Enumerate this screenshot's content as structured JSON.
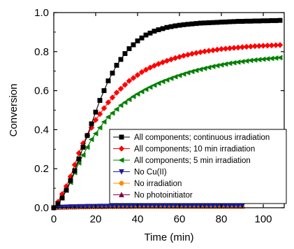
{
  "chart_data": {
    "type": "line",
    "xlabel": "Time (min)",
    "ylabel": "Conversion",
    "xlim": [
      0,
      110
    ],
    "ylim": [
      0,
      1.0
    ],
    "xticks": [
      0,
      20,
      40,
      60,
      80,
      100
    ],
    "yticks": [
      0.0,
      0.2,
      0.4,
      0.6,
      0.8,
      1.0
    ],
    "xtick_labels": [
      "0",
      "20",
      "40",
      "60",
      "80",
      "100"
    ],
    "ytick_labels": [
      "0.0",
      "0.2",
      "0.4",
      "0.6",
      "0.8",
      "1.0"
    ],
    "grid": false,
    "legend_position": "right",
    "series": [
      {
        "name": "All components; continuous irradiation",
        "color": "#000000",
        "marker": "square",
        "x": [
          0,
          2,
          4,
          6,
          8,
          10,
          12,
          14,
          16,
          18,
          20,
          22,
          24,
          26,
          28,
          30,
          32,
          34,
          36,
          38,
          40,
          42,
          44,
          46,
          48,
          50,
          52,
          54,
          56,
          58,
          60,
          62,
          64,
          66,
          68,
          70,
          72,
          74,
          76,
          78,
          80,
          82,
          84,
          86,
          88,
          90,
          92,
          94,
          96,
          98,
          100,
          102,
          104,
          106,
          108
        ],
        "y": [
          0,
          0.02,
          0.05,
          0.09,
          0.14,
          0.19,
          0.25,
          0.31,
          0.37,
          0.43,
          0.49,
          0.55,
          0.6,
          0.65,
          0.69,
          0.73,
          0.76,
          0.79,
          0.815,
          0.835,
          0.855,
          0.87,
          0.885,
          0.895,
          0.905,
          0.912,
          0.918,
          0.924,
          0.928,
          0.932,
          0.935,
          0.938,
          0.94,
          0.942,
          0.944,
          0.946,
          0.947,
          0.948,
          0.949,
          0.95,
          0.951,
          0.952,
          0.953,
          0.954,
          0.955,
          0.955,
          0.956,
          0.956,
          0.957,
          0.957,
          0.958,
          0.958,
          0.959,
          0.959,
          0.96
        ]
      },
      {
        "name": "All components; 10 min irradiation",
        "color": "#ff0000",
        "marker": "diamond",
        "x": [
          0,
          2,
          4,
          6,
          8,
          10,
          12,
          14,
          16,
          18,
          20,
          22,
          24,
          26,
          28,
          30,
          32,
          34,
          36,
          38,
          40,
          42,
          44,
          46,
          48,
          50,
          52,
          54,
          56,
          58,
          60,
          62,
          64,
          66,
          68,
          70,
          72,
          74,
          76,
          78,
          80,
          82,
          84,
          86,
          88,
          90,
          92,
          94,
          96,
          98,
          100,
          102,
          104,
          106,
          108
        ],
        "y": [
          0,
          0.03,
          0.07,
          0.11,
          0.16,
          0.22,
          0.28,
          0.33,
          0.37,
          0.41,
          0.45,
          0.48,
          0.51,
          0.54,
          0.565,
          0.59,
          0.61,
          0.63,
          0.65,
          0.665,
          0.68,
          0.695,
          0.707,
          0.718,
          0.728,
          0.737,
          0.745,
          0.753,
          0.76,
          0.767,
          0.773,
          0.779,
          0.784,
          0.789,
          0.793,
          0.797,
          0.801,
          0.804,
          0.807,
          0.81,
          0.813,
          0.815,
          0.817,
          0.819,
          0.821,
          0.823,
          0.825,
          0.826,
          0.828,
          0.829,
          0.83,
          0.831,
          0.832,
          0.833,
          0.834
        ]
      },
      {
        "name": "All components; 5 min irradiation",
        "color": "#008000",
        "marker": "triangle-left",
        "x": [
          0,
          2,
          4,
          6,
          8,
          10,
          12,
          14,
          16,
          18,
          20,
          22,
          24,
          26,
          28,
          30,
          32,
          34,
          36,
          38,
          40,
          42,
          44,
          46,
          48,
          50,
          52,
          54,
          56,
          58,
          60,
          62,
          64,
          66,
          68,
          70,
          72,
          74,
          76,
          78,
          80,
          82,
          84,
          86,
          88,
          90,
          92,
          94,
          96,
          98,
          100,
          102,
          104,
          106,
          108
        ],
        "y": [
          0,
          0.02,
          0.05,
          0.09,
          0.13,
          0.18,
          0.23,
          0.27,
          0.31,
          0.35,
          0.38,
          0.41,
          0.44,
          0.465,
          0.485,
          0.505,
          0.525,
          0.54,
          0.555,
          0.57,
          0.583,
          0.595,
          0.607,
          0.618,
          0.628,
          0.638,
          0.647,
          0.655,
          0.663,
          0.671,
          0.678,
          0.685,
          0.692,
          0.698,
          0.704,
          0.709,
          0.714,
          0.719,
          0.724,
          0.728,
          0.732,
          0.736,
          0.74,
          0.743,
          0.746,
          0.749,
          0.752,
          0.755,
          0.757,
          0.759,
          0.761,
          0.763,
          0.765,
          0.767,
          0.769
        ]
      },
      {
        "name": "No Cu(II)",
        "color": "#1a1aa0",
        "marker": "triangle-down",
        "x": [
          0,
          2,
          4,
          6,
          8,
          10,
          12,
          14,
          16,
          18,
          20,
          22,
          24,
          26,
          28,
          30,
          32,
          34,
          36,
          38,
          40,
          42,
          44,
          46,
          48,
          50,
          52,
          54,
          56,
          58,
          60,
          62,
          64,
          66,
          68,
          70,
          72,
          74,
          76,
          78,
          80,
          82,
          84,
          86,
          88,
          90
        ],
        "y": [
          0,
          0.002,
          0.003,
          0.004,
          0.005,
          0.005,
          0.006,
          0.006,
          0.007,
          0.007,
          0.007,
          0.008,
          0.008,
          0.008,
          0.008,
          0.009,
          0.009,
          0.009,
          0.009,
          0.009,
          0.01,
          0.01,
          0.01,
          0.01,
          0.01,
          0.01,
          0.01,
          0.01,
          0.01,
          0.01,
          0.01,
          0.01,
          0.01,
          0.01,
          0.01,
          0.01,
          0.01,
          0.01,
          0.01,
          0.01,
          0.01,
          0.01,
          0.01,
          0.01,
          0.01,
          0.01
        ]
      },
      {
        "name": "No irradiation",
        "color": "#ff8c00",
        "marker": "circle",
        "x": [
          0,
          2,
          4,
          6,
          8,
          10,
          12,
          14,
          16,
          18,
          20,
          22,
          24,
          26,
          28,
          30,
          32,
          34,
          36,
          38,
          40,
          42,
          44,
          46,
          48,
          50,
          52,
          54,
          56,
          58,
          60,
          62,
          64,
          66,
          68,
          70,
          72,
          74,
          76,
          78,
          80,
          82,
          84,
          86,
          88,
          90
        ],
        "y": [
          0,
          0.001,
          0.002,
          0.002,
          0.003,
          0.003,
          0.003,
          0.004,
          0.004,
          0.004,
          0.004,
          0.005,
          0.005,
          0.005,
          0.005,
          0.005,
          0.005,
          0.006,
          0.006,
          0.006,
          0.006,
          0.006,
          0.006,
          0.006,
          0.006,
          0.006,
          0.006,
          0.006,
          0.006,
          0.006,
          0.006,
          0.006,
          0.006,
          0.006,
          0.006,
          0.006,
          0.006,
          0.006,
          0.006,
          0.006,
          0.006,
          0.006,
          0.006,
          0.006,
          0.006,
          0.006
        ]
      },
      {
        "name": "No photoinitiator",
        "color": "#800040",
        "marker": "triangle-up",
        "x": [
          0,
          2,
          4,
          6,
          8,
          10,
          12,
          14,
          16,
          18,
          20,
          22,
          24,
          26,
          28,
          30,
          32,
          34,
          36,
          38,
          40,
          42,
          44,
          46,
          48,
          50,
          52,
          54,
          56,
          58,
          60,
          62,
          64,
          66,
          68,
          70,
          72,
          74,
          76,
          78,
          80,
          82,
          84,
          86,
          88,
          90
        ],
        "y": [
          0,
          0.002,
          0.003,
          0.003,
          0.004,
          0.004,
          0.005,
          0.005,
          0.005,
          0.006,
          0.006,
          0.006,
          0.006,
          0.007,
          0.007,
          0.007,
          0.007,
          0.007,
          0.007,
          0.008,
          0.008,
          0.008,
          0.008,
          0.008,
          0.008,
          0.008,
          0.008,
          0.008,
          0.008,
          0.008,
          0.008,
          0.008,
          0.008,
          0.008,
          0.008,
          0.008,
          0.008,
          0.008,
          0.008,
          0.008,
          0.008,
          0.008,
          0.008,
          0.008,
          0.008,
          0.008
        ]
      }
    ]
  }
}
